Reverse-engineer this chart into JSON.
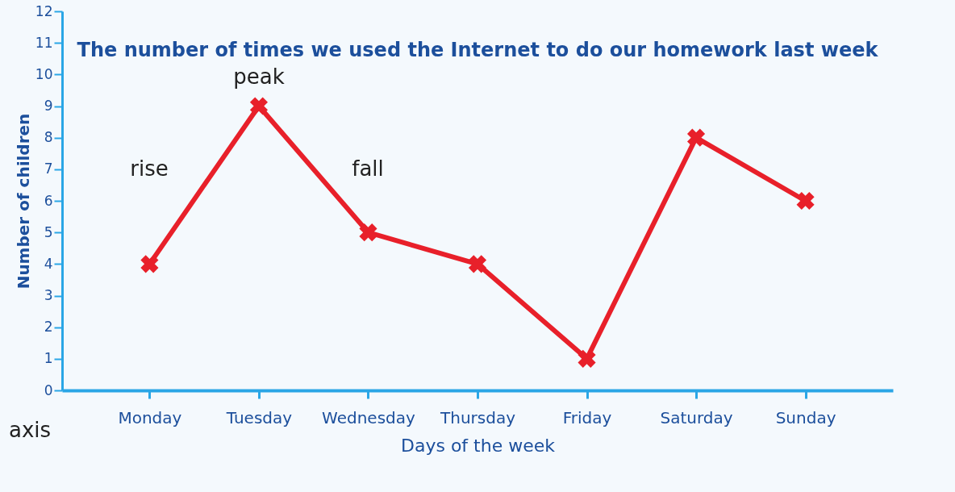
{
  "chart_data": {
    "type": "line",
    "title": "The number of times we used the Internet to do our homework last week",
    "xlabel": "Days of the week",
    "ylabel": "Number of children",
    "categories": [
      "Monday",
      "Tuesday",
      "Wednesday",
      "Thursday",
      "Friday",
      "Saturday",
      "Sunday"
    ],
    "series": [
      {
        "color": "#e8202a",
        "values": [
          4,
          9,
          5,
          4,
          1,
          8,
          6
        ]
      }
    ],
    "ylim": [
      0,
      12
    ],
    "yticks": [
      0,
      1,
      2,
      3,
      4,
      5,
      6,
      7,
      8,
      9,
      10,
      11,
      12
    ],
    "grid": false,
    "marker": "cross",
    "line_style": "solid",
    "annotations": [
      "rise",
      "peak",
      "fall",
      "axis"
    ]
  }
}
